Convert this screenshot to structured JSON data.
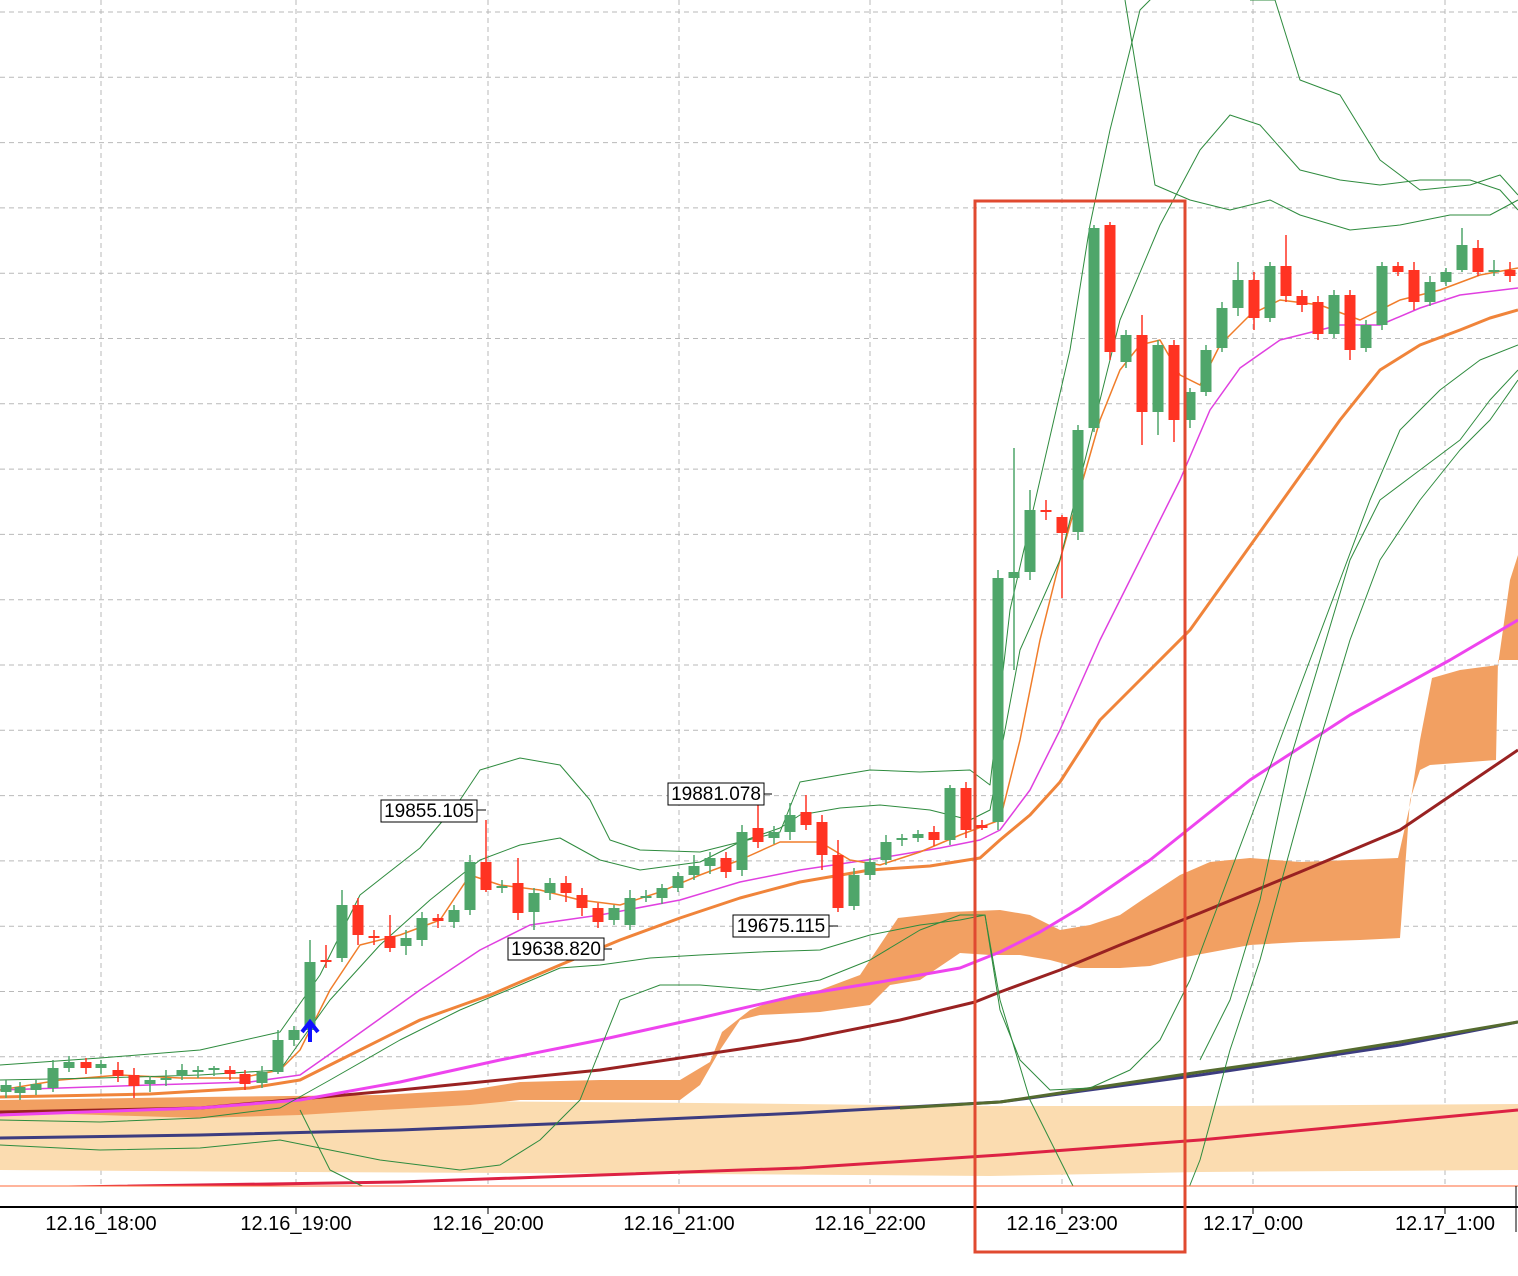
{
  "chart_data": {
    "type": "candlestick",
    "title": "",
    "xlabel": "",
    "ylabel": "",
    "x_ticks": [
      "12.16_18:00",
      "12.16_19:00",
      "12.16_20:00",
      "12.16_21:00",
      "12.16_22:00",
      "12.16_23:00",
      "12.17_0:00",
      "12.17_1:00"
    ],
    "grid": true,
    "price_labels": [
      {
        "value": "19855.105",
        "kind": "high"
      },
      {
        "value": "19638.820",
        "kind": "low"
      },
      {
        "value": "19881.078",
        "kind": "high"
      },
      {
        "value": "19675.115",
        "kind": "low"
      }
    ],
    "colors": {
      "bull": "#4fa66a",
      "bear": "#ff3322",
      "grid": "#b9b9b9",
      "bollinger": "#2e8b3e",
      "ema_fast": "#f07d2a",
      "ma_magenta_thin": "#e040e0",
      "ma_orange_thick": "#f0843a",
      "ma_magenta_thick": "#ee44ee",
      "ma_dark_red": "#992222",
      "ma_olive": "#556b2f",
      "ma_navy": "#3c3c80",
      "ma_crimson": "#dd2244",
      "cloud_dark": "#f2a062",
      "cloud_light": "#fbdcb0",
      "highlight_box": "#e04a30",
      "signal_arrow": "#1010ff"
    },
    "annotations": [
      "buy-signal-arrow",
      "highlight-rectangle"
    ]
  }
}
